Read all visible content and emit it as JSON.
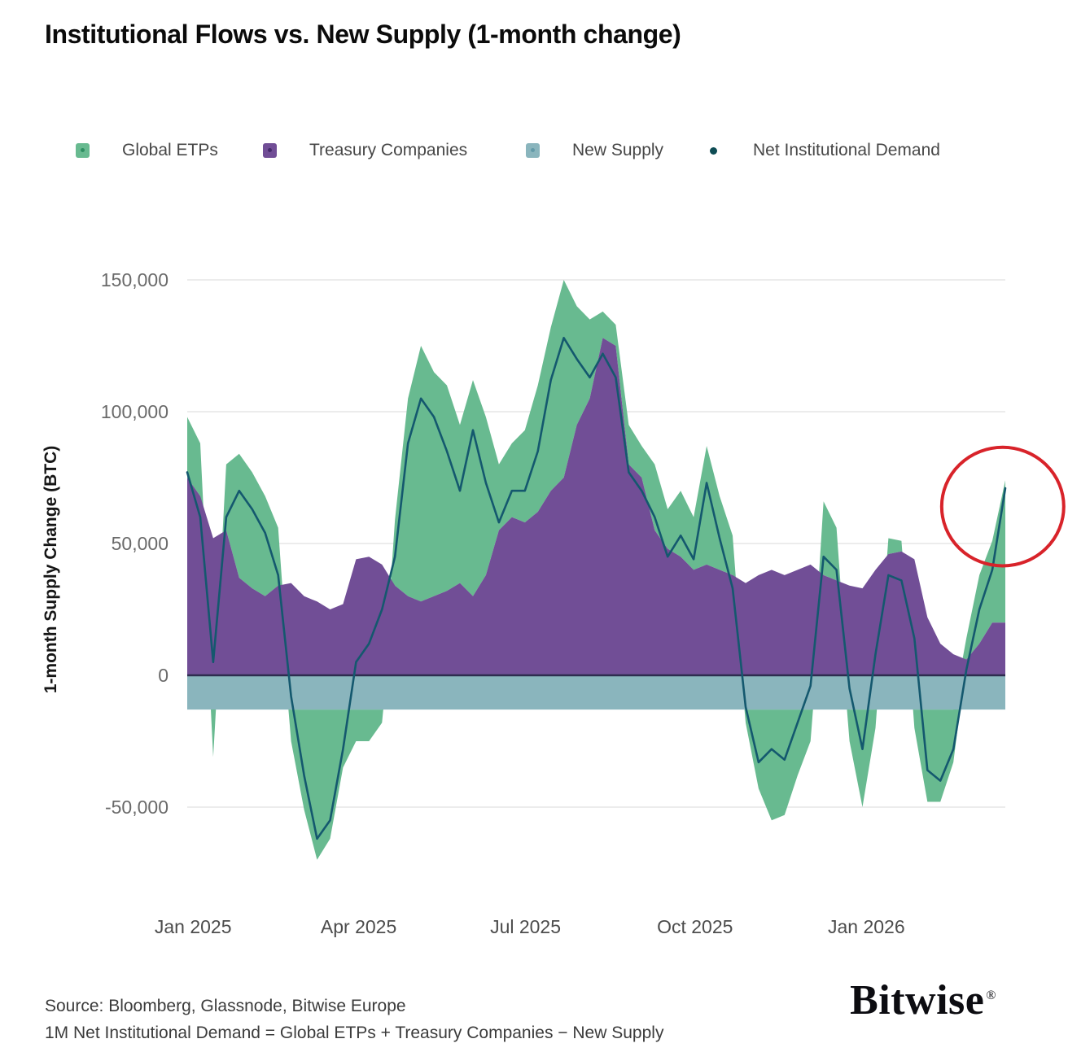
{
  "footer": {
    "source": "Source: Bloomberg, Glassnode, Bitwise Europe",
    "formula": "1M Net Institutional Demand = Global ETPs + Treasury Companies − New Supply",
    "brand": "Bitwise",
    "registered_mark": "®"
  },
  "chart_data": {
    "type": "area",
    "stacked": true,
    "title": "Institutional Flows vs. New Supply (1-month change)",
    "ylabel": "1-month Supply Change (BTC)",
    "ylim": [
      -75000,
      155000
    ],
    "yticks": [
      150000,
      100000,
      50000,
      0,
      -50000
    ],
    "ytick_labels": [
      "150,000",
      "100,000",
      "50,000",
      "0",
      "-50,000"
    ],
    "x_unit": "weeks from late Dec 2024 to late Mar 2026",
    "x_ticks": [
      {
        "label": "Jan 2025",
        "index": 0.45
      },
      {
        "label": "Apr 2025",
        "index": 13.2
      },
      {
        "label": "Jul 2025",
        "index": 26.05
      },
      {
        "label": "Oct 2025",
        "index": 39.1
      },
      {
        "label": "Jan 2026",
        "index": 52.3
      }
    ],
    "grid": "horizontal",
    "legend_position": "top",
    "background": "#ffffff",
    "grid_color": "#ececec",
    "zero_line_color": "#2e2c4f",
    "series": [
      {
        "name": "Global ETPs",
        "type": "area",
        "color": "#68ba90",
        "marker": "square",
        "marker_dot": "#2f8f63",
        "values": [
          23000,
          20000,
          -18000,
          25000,
          47000,
          44000,
          38000,
          22000,
          -12000,
          -38000,
          -57000,
          -49000,
          -22000,
          -12000,
          -12000,
          -5000,
          25000,
          75000,
          97000,
          85000,
          78000,
          60000,
          82000,
          60000,
          25000,
          28000,
          35000,
          48000,
          62000,
          75000,
          45000,
          30000,
          10000,
          8000,
          15000,
          12000,
          25000,
          15000,
          25000,
          20000,
          45000,
          28000,
          15000,
          -5000,
          -30000,
          -42000,
          -40000,
          -25000,
          -12000,
          28000,
          20000,
          -12000,
          -37000,
          -7000,
          6000,
          4000,
          -7000,
          -35000,
          -35000,
          -20000,
          8000,
          26000,
          31000,
          54000
        ]
      },
      {
        "name": "Treasury Companies",
        "type": "area",
        "color": "#714e96",
        "marker": "square",
        "marker_dot": "#452a6b",
        "values": [
          75000,
          68000,
          52000,
          55000,
          37000,
          33000,
          30000,
          34000,
          35000,
          30000,
          28000,
          25000,
          27000,
          44000,
          45000,
          42000,
          34000,
          30000,
          28000,
          30000,
          32000,
          35000,
          30000,
          38000,
          55000,
          60000,
          58000,
          62000,
          70000,
          75000,
          95000,
          105000,
          128000,
          125000,
          80000,
          75000,
          55000,
          48000,
          45000,
          40000,
          42000,
          40000,
          38000,
          35000,
          38000,
          40000,
          38000,
          40000,
          42000,
          38000,
          36000,
          34000,
          33000,
          40000,
          46000,
          47000,
          44000,
          22000,
          12000,
          8000,
          6000,
          12000,
          20000,
          20000
        ]
      },
      {
        "name": "New Supply",
        "type": "area",
        "color": "#8ab5bd",
        "marker": "square",
        "marker_dot": "#639aa8",
        "constant_value": -13000
      },
      {
        "name": "Net Institutional Demand",
        "type": "line",
        "color": "#14586e",
        "marker": "dot",
        "marker_dot": "#0e4c54",
        "values": [
          77000,
          60000,
          5000,
          60000,
          70000,
          63000,
          54000,
          38000,
          -8000,
          -38000,
          -62000,
          -55000,
          -28000,
          5000,
          12000,
          25000,
          45000,
          88000,
          105000,
          98000,
          85000,
          70000,
          93000,
          73000,
          58000,
          70000,
          70000,
          85000,
          112000,
          128000,
          120000,
          113000,
          122000,
          113000,
          77000,
          70000,
          60000,
          45000,
          53000,
          44000,
          73000,
          52000,
          33000,
          -12000,
          -33000,
          -28000,
          -32000,
          -18000,
          -4000,
          45000,
          40000,
          -5000,
          -28000,
          8000,
          38000,
          36000,
          14000,
          -36000,
          -40000,
          -28000,
          2000,
          25000,
          40000,
          71000
        ]
      }
    ],
    "annotation_circle": {
      "center_index": 62.8,
      "center_value": 64000,
      "radius_index": 4.7,
      "radius_value": 22500,
      "color": "#d8232a"
    }
  }
}
